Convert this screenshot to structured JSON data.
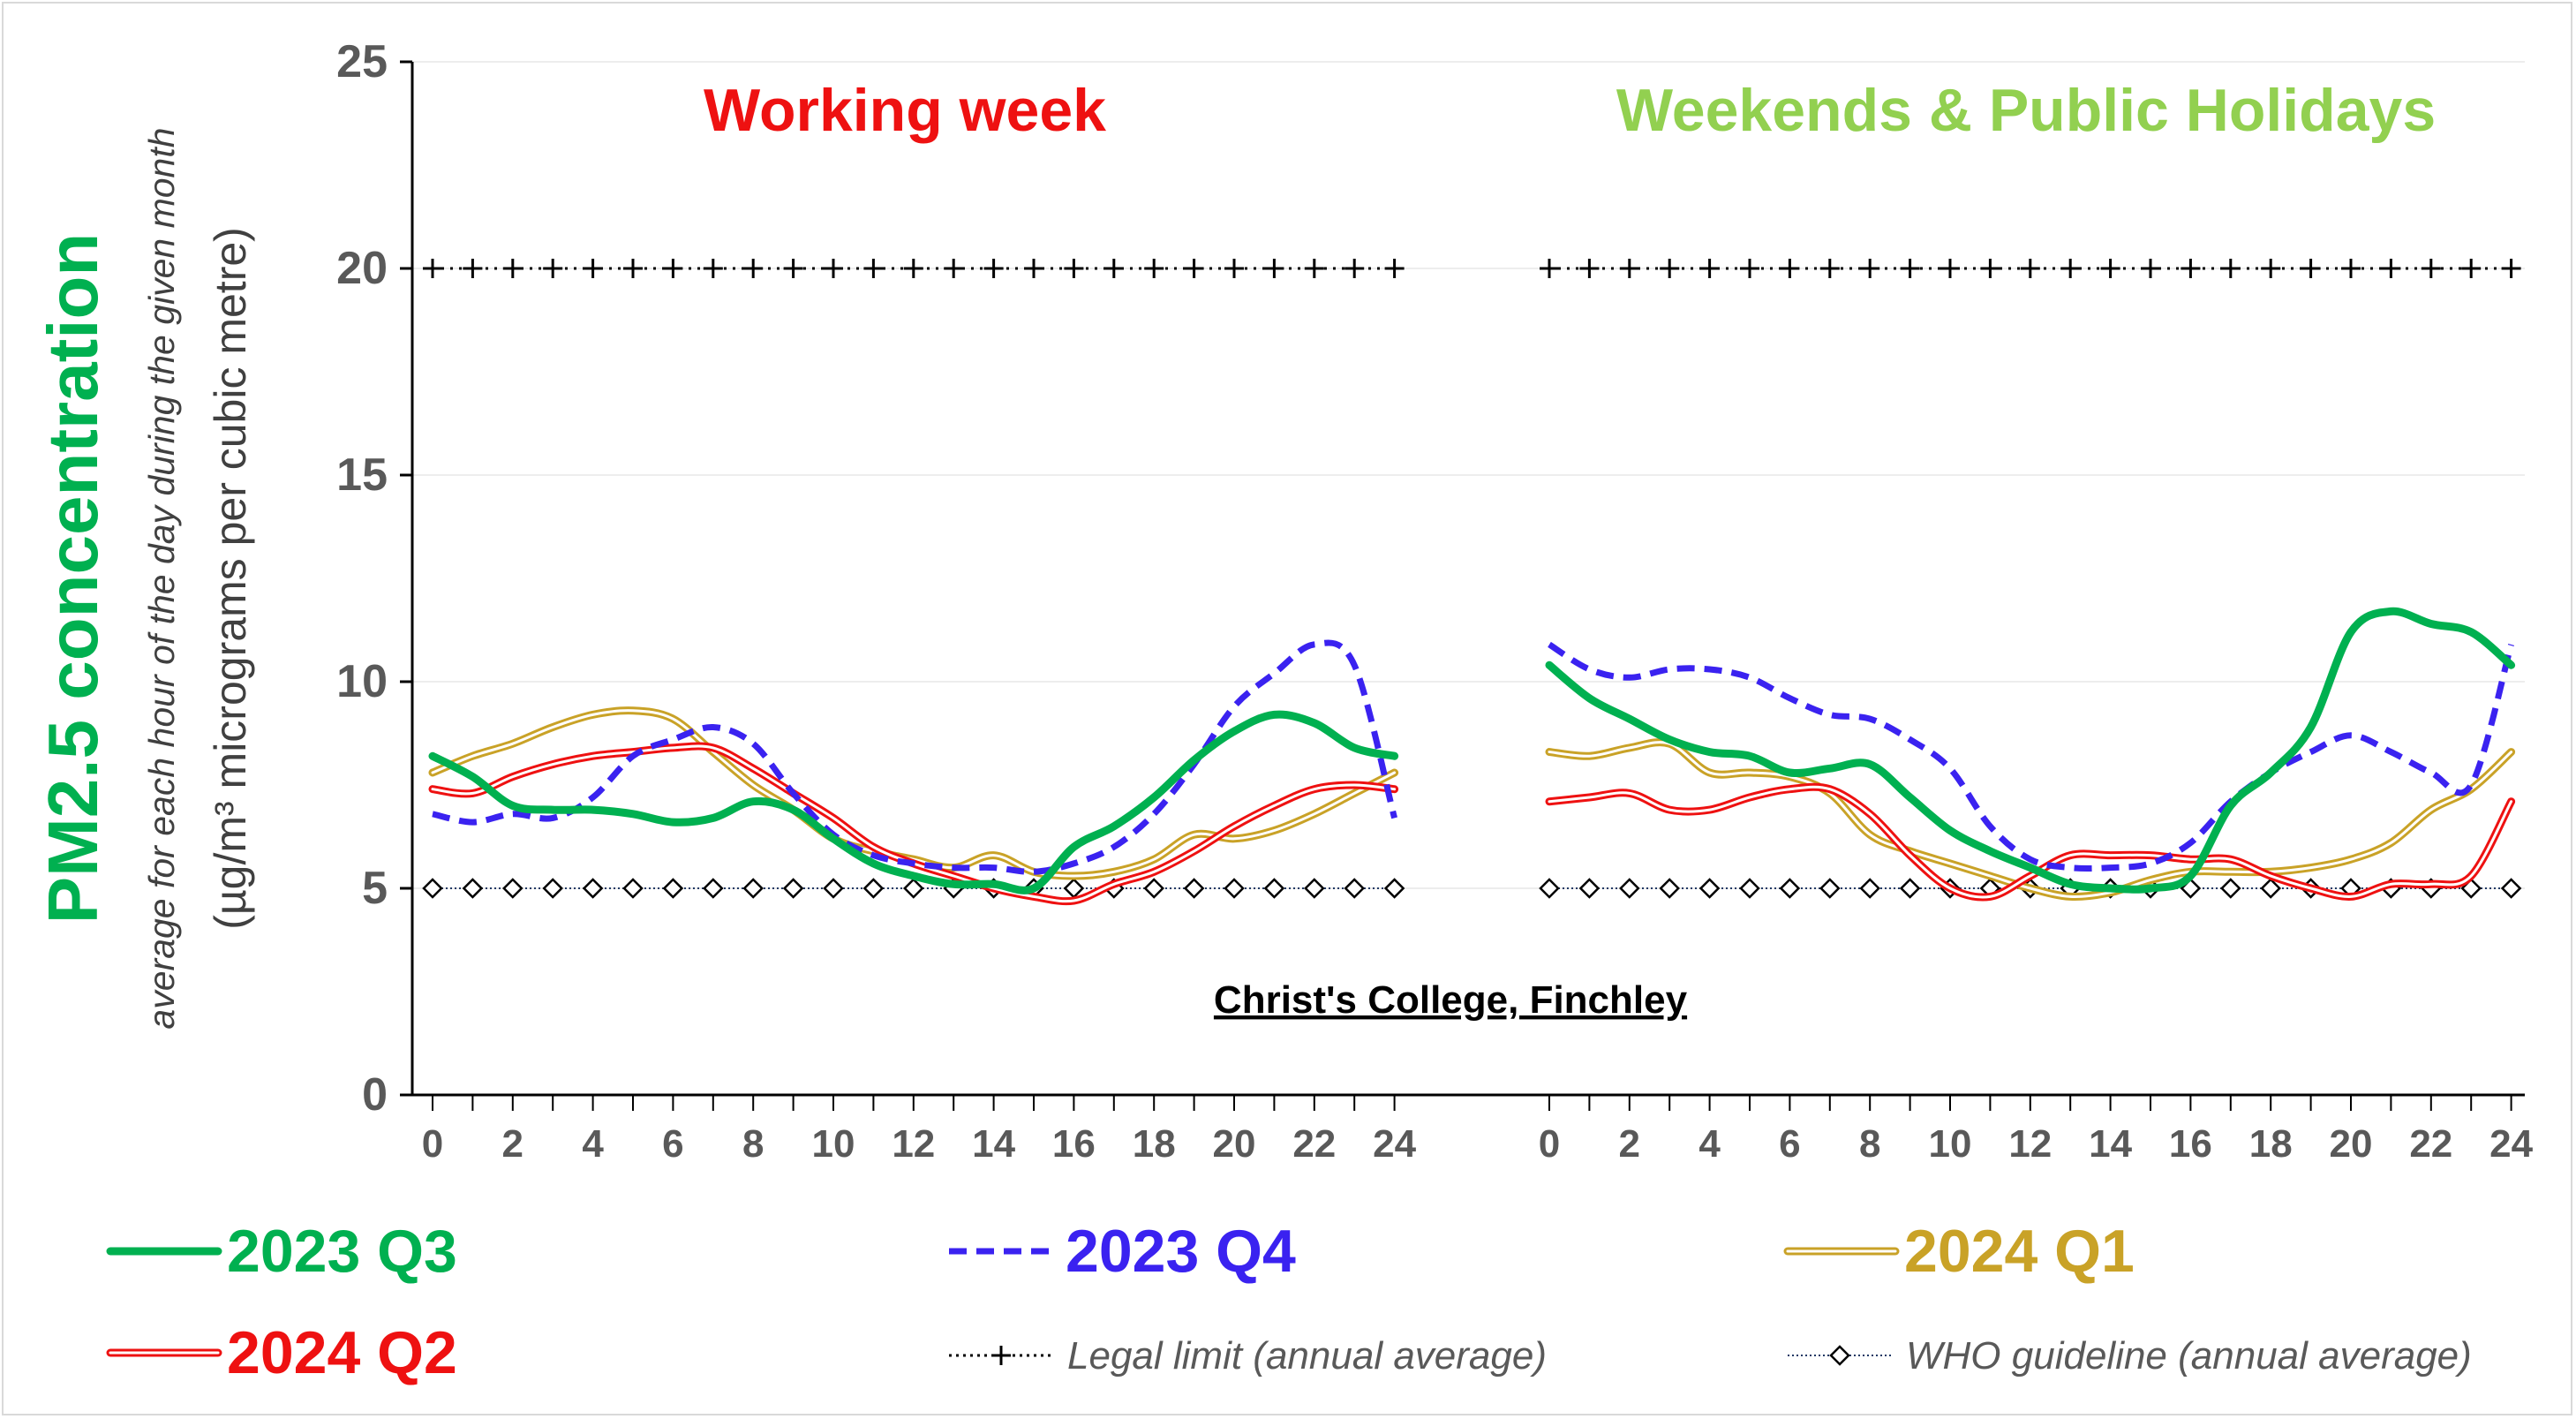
{
  "chart_data": {
    "type": "line",
    "panels": [
      {
        "title": "Working week",
        "title_color": "#ee1111"
      },
      {
        "title": "Weekends & Public Holidays",
        "title_color": "#92d050"
      }
    ],
    "site_label": "Christ's College, Finchley",
    "ylabel": "PM2.5 concentration",
    "ylabel_sub1": "average for each hour of the day during the given month",
    "ylabel_sub2": "(µg/m³ micrograms per cubic metre)",
    "ylim": [
      0,
      25
    ],
    "yticks": [
      "0",
      "5",
      "10",
      "15",
      "20",
      "25"
    ],
    "xticks": [
      "0",
      "2",
      "4",
      "6",
      "8",
      "10",
      "12",
      "14",
      "16",
      "18",
      "20",
      "22",
      "24"
    ],
    "x": [
      0,
      1,
      2,
      3,
      4,
      5,
      6,
      7,
      8,
      9,
      10,
      11,
      12,
      13,
      14,
      15,
      16,
      17,
      18,
      19,
      20,
      21,
      22,
      23,
      24
    ],
    "grid": "horizontal",
    "series": [
      {
        "name": "2023 Q3",
        "color": "#00b050",
        "style": "solid",
        "working": [
          8.2,
          7.7,
          7.0,
          6.9,
          6.9,
          6.8,
          6.6,
          6.7,
          7.1,
          6.9,
          6.2,
          5.6,
          5.3,
          5.1,
          5.1,
          5.0,
          6.0,
          6.5,
          7.2,
          8.1,
          8.8,
          9.2,
          9.0,
          8.4,
          8.2
        ],
        "weekend": [
          10.4,
          9.6,
          9.1,
          8.6,
          8.3,
          8.2,
          7.8,
          7.9,
          8.0,
          7.2,
          6.4,
          5.9,
          5.5,
          5.1,
          5.0,
          5.0,
          5.3,
          7.0,
          7.8,
          8.9,
          11.2,
          11.7,
          11.4,
          11.2,
          10.4
        ]
      },
      {
        "name": "2023 Q4",
        "color": "#3a22f0",
        "style": "dashed",
        "working": [
          6.8,
          6.6,
          6.8,
          6.7,
          7.2,
          8.2,
          8.6,
          8.9,
          8.5,
          7.3,
          6.3,
          5.8,
          5.6,
          5.5,
          5.5,
          5.4,
          5.6,
          6.0,
          6.8,
          8.0,
          9.4,
          10.2,
          10.9,
          10.4,
          6.7
        ],
        "weekend": [
          10.9,
          10.3,
          10.1,
          10.3,
          10.3,
          10.1,
          9.6,
          9.2,
          9.1,
          8.6,
          7.9,
          6.5,
          5.7,
          5.5,
          5.5,
          5.6,
          6.1,
          7.1,
          7.8,
          8.3,
          8.7,
          8.3,
          7.8,
          7.5,
          10.9
        ]
      },
      {
        "name": "2024 Q1",
        "color": "#c9a227",
        "style": "double",
        "working": [
          7.8,
          8.2,
          8.5,
          8.9,
          9.2,
          9.3,
          9.1,
          8.3,
          7.5,
          6.9,
          6.2,
          5.9,
          5.7,
          5.5,
          5.8,
          5.4,
          5.3,
          5.4,
          5.7,
          6.3,
          6.2,
          6.4,
          6.8,
          7.3,
          7.8
        ],
        "weekend": [
          8.3,
          8.2,
          8.4,
          8.5,
          7.8,
          7.8,
          7.7,
          7.3,
          6.3,
          5.9,
          5.6,
          5.3,
          5.0,
          4.8,
          4.9,
          5.2,
          5.4,
          5.4,
          5.4,
          5.5,
          5.7,
          6.1,
          6.9,
          7.4,
          8.3
        ]
      },
      {
        "name": "2024 Q2",
        "color": "#ee1111",
        "style": "double",
        "working": [
          7.4,
          7.3,
          7.7,
          8.0,
          8.2,
          8.3,
          8.4,
          8.4,
          7.9,
          7.3,
          6.7,
          6.0,
          5.6,
          5.3,
          5.0,
          4.8,
          4.7,
          5.1,
          5.4,
          5.9,
          6.5,
          7.0,
          7.4,
          7.5,
          7.4
        ],
        "weekend": [
          7.1,
          7.2,
          7.3,
          6.9,
          6.9,
          7.2,
          7.4,
          7.4,
          6.8,
          5.8,
          5.0,
          4.8,
          5.3,
          5.8,
          5.8,
          5.8,
          5.7,
          5.7,
          5.3,
          5.0,
          4.8,
          5.1,
          5.1,
          5.3,
          7.1
        ]
      }
    ],
    "reference_lines": [
      {
        "name": "Legal limit (annual average)",
        "value": 20,
        "color": "#000000",
        "marker": "plus"
      },
      {
        "name": "WHO guideline (annual average)",
        "value": 5,
        "color": "#1f3864",
        "marker": "diamond"
      }
    ]
  }
}
